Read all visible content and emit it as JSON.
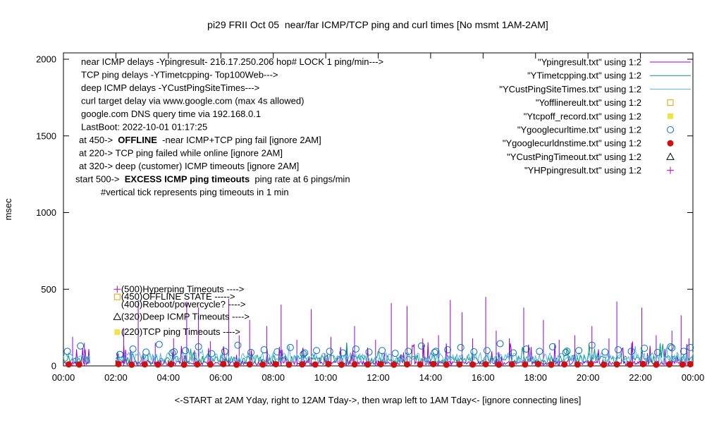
{
  "title": "pi29 FRII Oct 05  near/far ICMP/TCP ping and curl times [No msmt 1AM-2AM]",
  "ylabel": "msec",
  "xlabel": "<-START at 2AM Yday, right to 12AM Tday->, then wrap left to 1AM Tday<- [ignore connecting lines]",
  "chart_data": {
    "type": "line",
    "x_tick_labels": [
      "00:00",
      "02:00",
      "04:00",
      "06:00",
      "08:00",
      "10:00",
      "12:00",
      "14:00",
      "16:00",
      "18:00",
      "20:00",
      "22:00",
      "00:00"
    ],
    "x_hours_range": [
      0,
      24
    ],
    "ylim": [
      0,
      2000
    ],
    "y_ticks": [
      0,
      500,
      1000,
      1500,
      2000
    ],
    "grid": false,
    "legend_position": "top-right-inside",
    "no_measurement_gap_hours": [
      1,
      2
    ],
    "series": [
      {
        "name": "\"Ypingresult.txt\" using 1:2",
        "color": "#9400d3",
        "style": "line",
        "noise": {
          "seed": 11,
          "step_min": 2,
          "base": 18,
          "spread": 1.4,
          "spike_prob": 0.12,
          "spike_max": 130
        },
        "spikes": [
          [
            0.35,
            190
          ],
          [
            0.8,
            150
          ],
          [
            2.3,
            240
          ],
          [
            2.85,
            430
          ],
          [
            3.5,
            150
          ],
          [
            4.2,
            180
          ],
          [
            4.7,
            420
          ],
          [
            5.15,
            380
          ],
          [
            5.6,
            160
          ],
          [
            6.3,
            440
          ],
          [
            6.7,
            200
          ],
          [
            7.1,
            300
          ],
          [
            7.75,
            260
          ],
          [
            8.3,
            400
          ],
          [
            8.9,
            170
          ],
          [
            9.45,
            370
          ],
          [
            10.2,
            190
          ],
          [
            10.8,
            150
          ],
          [
            11.1,
            260
          ],
          [
            11.9,
            170
          ],
          [
            12.5,
            410
          ],
          [
            13.1,
            390
          ],
          [
            13.7,
            180
          ],
          [
            14.3,
            200
          ],
          [
            14.75,
            430
          ],
          [
            15.2,
            350
          ],
          [
            15.6,
            180
          ],
          [
            16.1,
            450
          ],
          [
            16.5,
            230
          ],
          [
            17.0,
            180
          ],
          [
            17.55,
            380
          ],
          [
            18.3,
            300
          ],
          [
            18.9,
            170
          ],
          [
            19.5,
            200
          ],
          [
            20.15,
            260
          ],
          [
            20.8,
            180
          ],
          [
            21.1,
            420
          ],
          [
            21.7,
            160
          ],
          [
            22.05,
            380
          ],
          [
            22.6,
            200
          ],
          [
            23.2,
            230
          ],
          [
            23.55,
            330
          ],
          [
            23.85,
            180
          ]
        ]
      },
      {
        "name": "\"YTimetcpping.txt\" using 1:2",
        "color": "#009e73",
        "style": "line",
        "noise": {
          "seed": 22,
          "step_min": 3,
          "base": 40,
          "spread": 1.5,
          "spike_prob": 0.05,
          "spike_max": 100
        }
      },
      {
        "name": "\"YCustPingSiteTimes.txt\" using 1:2",
        "color": "#56b4e9",
        "style": "line",
        "noise": {
          "seed": 33,
          "step_min": 3,
          "base": 55,
          "spread": 1.3,
          "spike_prob": 0.04,
          "spike_max": 50
        }
      },
      {
        "name": "\"Yofflinereult.txt\" using 1:2",
        "color": "#e69f00",
        "style": "points",
        "marker": "square-open",
        "points": []
      },
      {
        "name": "\"Ytcpoff_record.txt\" using 1:2",
        "color": "#f0e442",
        "style": "points",
        "marker": "square-filled",
        "points": []
      },
      {
        "name": "\"Ygooglecurltime.txt\" using 1:2",
        "color": "#0072b2",
        "style": "points",
        "marker": "circle-open",
        "points": [
          [
            0.15,
            95
          ],
          [
            0.65,
            130
          ],
          [
            2.15,
            75
          ],
          [
            2.65,
            110
          ],
          [
            3.15,
            90
          ],
          [
            3.65,
            140
          ],
          [
            4.15,
            85
          ],
          [
            4.22,
            92
          ],
          [
            4.65,
            100
          ],
          [
            5.15,
            125
          ],
          [
            5.65,
            80
          ],
          [
            6.15,
            95
          ],
          [
            6.65,
            135
          ],
          [
            7.15,
            88
          ],
          [
            7.65,
            105
          ],
          [
            8.15,
            92
          ],
          [
            8.65,
            120
          ],
          [
            9.15,
            78
          ],
          [
            9.2,
            85
          ],
          [
            9.65,
            100
          ],
          [
            10.15,
            95
          ],
          [
            10.65,
            85
          ],
          [
            11.15,
            110
          ],
          [
            11.65,
            90
          ],
          [
            12.15,
            100
          ],
          [
            12.65,
            82
          ],
          [
            13.15,
            95
          ],
          [
            13.65,
            130
          ],
          [
            14.15,
            88
          ],
          [
            14.2,
            95
          ],
          [
            14.65,
            105
          ],
          [
            15.15,
            120
          ],
          [
            15.65,
            92
          ],
          [
            16.15,
            100
          ],
          [
            16.65,
            145
          ],
          [
            17.15,
            85
          ],
          [
            17.65,
            110
          ],
          [
            18.15,
            95
          ],
          [
            18.65,
            125
          ],
          [
            19.15,
            88
          ],
          [
            19.2,
            96
          ],
          [
            19.65,
            100
          ],
          [
            20.15,
            135
          ],
          [
            20.65,
            90
          ],
          [
            21.15,
            105
          ],
          [
            21.65,
            95
          ],
          [
            22.15,
            115
          ],
          [
            22.65,
            88
          ],
          [
            23.15,
            125
          ],
          [
            23.2,
            118
          ],
          [
            23.65,
            95
          ],
          [
            23.9,
            120
          ]
        ]
      },
      {
        "name": "\"Ygooglecurldnstime.txt\" using 1:2",
        "color": "#d01010",
        "style": "points",
        "marker": "circle-filled",
        "points": [
          [
            0.2,
            10
          ],
          [
            0.6,
            9
          ],
          [
            2.1,
            12
          ],
          [
            2.6,
            8
          ],
          [
            3.1,
            10
          ],
          [
            3.6,
            9
          ],
          [
            4.1,
            11
          ],
          [
            4.6,
            8
          ],
          [
            5.1,
            10
          ],
          [
            5.6,
            9
          ],
          [
            6.1,
            12
          ],
          [
            6.6,
            8
          ],
          [
            7.1,
            10
          ],
          [
            7.6,
            9
          ],
          [
            8.1,
            11
          ],
          [
            8.6,
            8
          ],
          [
            9.1,
            10
          ],
          [
            9.6,
            9
          ],
          [
            10.1,
            12
          ],
          [
            10.6,
            8
          ],
          [
            11.1,
            10
          ],
          [
            11.6,
            9
          ],
          [
            12.1,
            11
          ],
          [
            12.6,
            8
          ],
          [
            13.1,
            10
          ],
          [
            13.6,
            9
          ],
          [
            14.1,
            12
          ],
          [
            14.6,
            8
          ],
          [
            15.1,
            10
          ],
          [
            15.6,
            9
          ],
          [
            16.1,
            11
          ],
          [
            16.6,
            8
          ],
          [
            17.1,
            10
          ],
          [
            17.6,
            9
          ],
          [
            18.1,
            12
          ],
          [
            18.6,
            8
          ],
          [
            19.1,
            10
          ],
          [
            19.6,
            9
          ],
          [
            20.1,
            11
          ],
          [
            20.6,
            8
          ],
          [
            21.1,
            10
          ],
          [
            21.6,
            9
          ],
          [
            22.1,
            12
          ],
          [
            22.6,
            8
          ],
          [
            23.1,
            10
          ],
          [
            23.6,
            9
          ],
          [
            23.9,
            11
          ]
        ]
      },
      {
        "name": "\"YCustPingTimeout.txt\" using 1:2",
        "color": "#000000",
        "style": "points",
        "marker": "triangle-open",
        "points": []
      },
      {
        "name": "\"YHPpingresult.txt\" using 1:2",
        "color": "#c000c0",
        "style": "points",
        "marker": "plus",
        "points": []
      }
    ],
    "info_lines": [
      {
        "pre": "near ICMP delays -Ypingresult- 216.17.250.206 hop# LOCK 1 ping/min--->",
        "x": 115
      },
      {
        "pre": "TCP ping delays -YTimetcpping- Top100Web--->",
        "x": 115
      },
      {
        "pre": "deep ICMP delays -YCustPingSiteTimes--->",
        "x": 115
      },
      {
        "pre": "curl target delay via www.google.com (max 4s allowed)",
        "x": 115
      },
      {
        "pre": "google.com DNS query time via 192.168.0.1",
        "x": 115
      },
      {
        "pre": "LastBoot: 2022-10-01 01:17:25",
        "x": 115
      },
      {
        "pre": "at 450->  ",
        "bold": "OFFLINE",
        "post": "  -near ICMP+TCP ping fail [ignore 2AM]",
        "x": 112
      },
      {
        "pre": "at 220-> TCP ping failed while online [ignore 2AM]",
        "x": 112
      },
      {
        "pre": "at 320-> deep (customer) ICMP timeouts [ignore 2AM]",
        "x": 112
      },
      {
        "pre": "start 500->  ",
        "bold": "EXCESS ICMP ping timeouts",
        "post": "  ping rate at 6 pings/min",
        "x": 107
      },
      {
        "pre": "#vertical tick represents ping timeouts in 1 min",
        "x": 143
      }
    ],
    "mid_labels": [
      {
        "value": 500,
        "text": "(500)Hyperping Timeouts ---->",
        "marker": "plus",
        "marker_color": "#c000c0"
      },
      {
        "value": 450,
        "text": "(450)OFFLINE STATE ----->",
        "marker": "square-open",
        "marker_color": "#e69f00"
      },
      {
        "value": 400,
        "text": "(400)Reboot/powercycle? ---->",
        "marker": "none",
        "marker_color": "#000000"
      },
      {
        "value": 320,
        "text": "(320)Deep ICMP Timeouts ---->",
        "marker": "triangle-open",
        "marker_color": "#000000"
      },
      {
        "value": 220,
        "text": "(220)TCP ping Timeouts ---->",
        "marker": "square-filled",
        "marker_color": "#f0e442"
      }
    ]
  }
}
